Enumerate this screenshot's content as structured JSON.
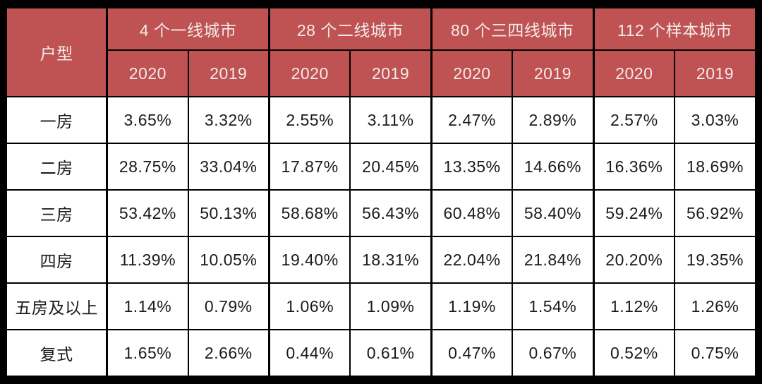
{
  "chart_data": {
    "type": "table",
    "corner_label": "户型",
    "column_groups": [
      {
        "label": "4 个一线城市",
        "years": [
          "2020",
          "2019"
        ]
      },
      {
        "label": "28 个二线城市",
        "years": [
          "2020",
          "2019"
        ]
      },
      {
        "label": "80 个三四线城市",
        "years": [
          "2020",
          "2019"
        ]
      },
      {
        "label": "112 个样本城市",
        "years": [
          "2020",
          "2019"
        ]
      }
    ],
    "rows": [
      {
        "label": "一房",
        "values": [
          "3.65%",
          "3.32%",
          "2.55%",
          "3.11%",
          "2.47%",
          "2.89%",
          "2.57%",
          "3.03%"
        ]
      },
      {
        "label": "二房",
        "values": [
          "28.75%",
          "33.04%",
          "17.87%",
          "20.45%",
          "13.35%",
          "14.66%",
          "16.36%",
          "18.69%"
        ]
      },
      {
        "label": "三房",
        "values": [
          "53.42%",
          "50.13%",
          "58.68%",
          "56.43%",
          "60.48%",
          "58.40%",
          "59.24%",
          "56.92%"
        ]
      },
      {
        "label": "四房",
        "values": [
          "11.39%",
          "10.05%",
          "19.40%",
          "18.31%",
          "22.04%",
          "21.84%",
          "20.20%",
          "19.35%"
        ]
      },
      {
        "label": "五房及以上",
        "values": [
          "1.14%",
          "0.79%",
          "1.06%",
          "1.09%",
          "1.19%",
          "1.54%",
          "1.12%",
          "1.26%"
        ]
      },
      {
        "label": "复式",
        "values": [
          "1.65%",
          "2.66%",
          "0.44%",
          "0.61%",
          "0.47%",
          "0.67%",
          "0.52%",
          "0.75%"
        ]
      }
    ],
    "colors": {
      "header_bg": "#BF5253",
      "header_text": "#F4EAEA",
      "body_text": "#1A1A1A",
      "border": "#000000",
      "body_bg": "#FFFFFF",
      "frame": "#000000"
    },
    "layout": {
      "grid": "on",
      "legend": "none"
    }
  }
}
